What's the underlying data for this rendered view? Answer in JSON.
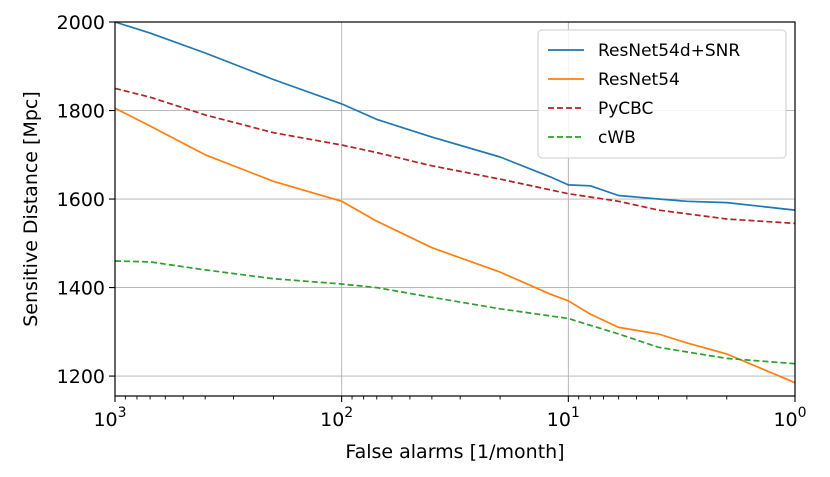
{
  "chart_data": {
    "type": "line",
    "title": "",
    "xlabel": "False alarms [1/month]",
    "ylabel": "Sensitive Distance [Mpc]",
    "x_scale": "log",
    "x_reversed": true,
    "xlim": [
      1000,
      1
    ],
    "ylim": [
      1155,
      2000
    ],
    "x_ticks": [
      {
        "value": 1000,
        "base": "10",
        "exp": "3"
      },
      {
        "value": 100,
        "base": "10",
        "exp": "2"
      },
      {
        "value": 10,
        "base": "10",
        "exp": "1"
      },
      {
        "value": 1,
        "base": "10",
        "exp": "0"
      }
    ],
    "y_ticks": [
      1200,
      1400,
      1600,
      1800,
      2000
    ],
    "grid": true,
    "legend_position": "top-right",
    "series": [
      {
        "name": "ResNet54d+SNR",
        "color": "#1f77b4",
        "dash": "solid",
        "x": [
          1000,
          700,
          400,
          200,
          100,
          70,
          40,
          20,
          12,
          10,
          8,
          6,
          4,
          3,
          2,
          1
        ],
        "y": [
          2000,
          1975,
          1930,
          1870,
          1815,
          1780,
          1740,
          1695,
          1650,
          1632,
          1630,
          1608,
          1600,
          1595,
          1592,
          1575
        ]
      },
      {
        "name": "ResNet54",
        "color": "#ff7f0e",
        "dash": "solid",
        "x": [
          1000,
          700,
          400,
          200,
          100,
          70,
          40,
          20,
          12,
          10,
          8,
          6,
          4,
          3,
          2,
          1
        ],
        "y": [
          1805,
          1765,
          1700,
          1640,
          1595,
          1550,
          1490,
          1435,
          1385,
          1370,
          1340,
          1310,
          1295,
          1275,
          1250,
          1185
        ]
      },
      {
        "name": "PyCBC",
        "color": "#b22222",
        "dash": "dashed",
        "x": [
          1000,
          700,
          400,
          200,
          100,
          70,
          40,
          20,
          10,
          6,
          4,
          2,
          1
        ],
        "y": [
          1850,
          1830,
          1790,
          1750,
          1722,
          1705,
          1675,
          1645,
          1612,
          1595,
          1575,
          1555,
          1545
        ]
      },
      {
        "name": "cWB",
        "color": "#2ca02c",
        "dash": "dashed",
        "x": [
          1000,
          700,
          400,
          200,
          100,
          70,
          40,
          20,
          10,
          6,
          4,
          2,
          1
        ],
        "y": [
          1460,
          1458,
          1440,
          1420,
          1408,
          1400,
          1378,
          1352,
          1330,
          1295,
          1265,
          1240,
          1228
        ]
      }
    ]
  }
}
